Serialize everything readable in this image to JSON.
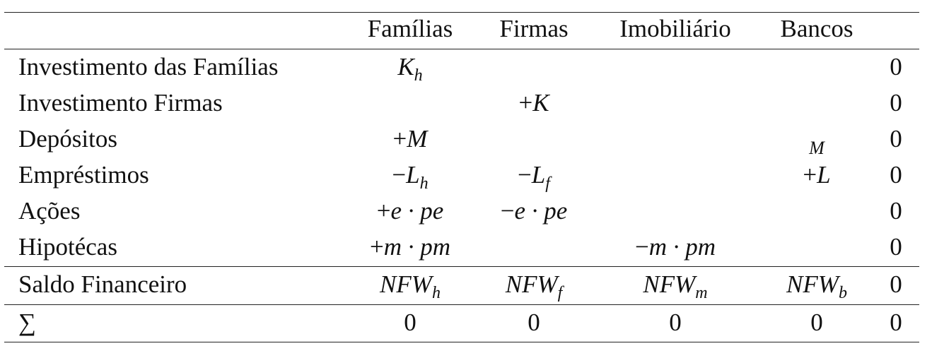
{
  "header": {
    "corner": "",
    "col1": "Famílias",
    "col2": "Firmas",
    "col3": "Imobiliário",
    "col4": "Bancos",
    "col5": ""
  },
  "rows": [
    {
      "label": "Investimento das Famílias",
      "c1": {
        "pre": "",
        "base": "K",
        "sub": "h",
        "post": ""
      },
      "c2": {
        "pre": "",
        "base": "",
        "sub": "",
        "post": ""
      },
      "c3": {
        "pre": "",
        "base": "",
        "sub": "",
        "post": ""
      },
      "c4": {
        "pre": "",
        "base": "",
        "sub": "",
        "post": ""
      },
      "total": "0"
    },
    {
      "label": "Investimento Firmas",
      "c1": {
        "pre": "",
        "base": "",
        "sub": "",
        "post": ""
      },
      "c2": {
        "pre": "+",
        "base": "K",
        "sub": "",
        "post": ""
      },
      "c3": {
        "pre": "",
        "base": "",
        "sub": "",
        "post": ""
      },
      "c4": {
        "pre": "",
        "base": "",
        "sub": "",
        "post": ""
      },
      "total": "0"
    },
    {
      "label": "Depósitos",
      "c1": {
        "pre": "+",
        "base": "M",
        "sub": "",
        "post": ""
      },
      "c2": {
        "pre": "",
        "base": "",
        "sub": "",
        "post": ""
      },
      "c3": {
        "pre": "",
        "base": "",
        "sub": "",
        "post": ""
      },
      "c4": {
        "pre": "",
        "base": "M",
        "sub": "",
        "post": ""
      },
      "total": "0"
    },
    {
      "label": "Empréstimos",
      "c1": {
        "pre": "−",
        "base": "L",
        "sub": "h",
        "post": ""
      },
      "c2": {
        "pre": "−",
        "base": "L",
        "sub": "f",
        "post": ""
      },
      "c3": {
        "pre": "",
        "base": "",
        "sub": "",
        "post": ""
      },
      "c4": {
        "pre": "+",
        "base": "L",
        "sub": "",
        "post": ""
      },
      "total": "0"
    },
    {
      "label": "Ações",
      "c1": {
        "pre": "+",
        "base": "e",
        "sub": "",
        "post": " · pe"
      },
      "c2": {
        "pre": "−",
        "base": "e",
        "sub": "",
        "post": " · pe"
      },
      "c3": {
        "pre": "",
        "base": "",
        "sub": "",
        "post": ""
      },
      "c4": {
        "pre": "",
        "base": "",
        "sub": "",
        "post": ""
      },
      "total": "0"
    },
    {
      "label": "Hipotécas",
      "c1": {
        "pre": "+",
        "base": "m",
        "sub": "",
        "post": " · pm"
      },
      "c2": {
        "pre": "",
        "base": "",
        "sub": "",
        "post": ""
      },
      "c3": {
        "pre": "−",
        "base": "m",
        "sub": "",
        "post": " · pm"
      },
      "c4": {
        "pre": "",
        "base": "",
        "sub": "",
        "post": ""
      },
      "total": "0"
    },
    {
      "label": "Saldo Financeiro",
      "c1": {
        "pre": "",
        "base": "NFW",
        "sub": "h",
        "post": ""
      },
      "c2": {
        "pre": "",
        "base": "NFW",
        "sub": "f",
        "post": ""
      },
      "c3": {
        "pre": "",
        "base": "NFW",
        "sub": "m",
        "post": ""
      },
      "c4": {
        "pre": "",
        "base": "NFW",
        "sub": "b",
        "post": ""
      },
      "total": "0"
    }
  ],
  "sum_row": {
    "label": "∑",
    "c1": "0",
    "c2": "0",
    "c3": "0",
    "c4": "0",
    "total": "0"
  }
}
